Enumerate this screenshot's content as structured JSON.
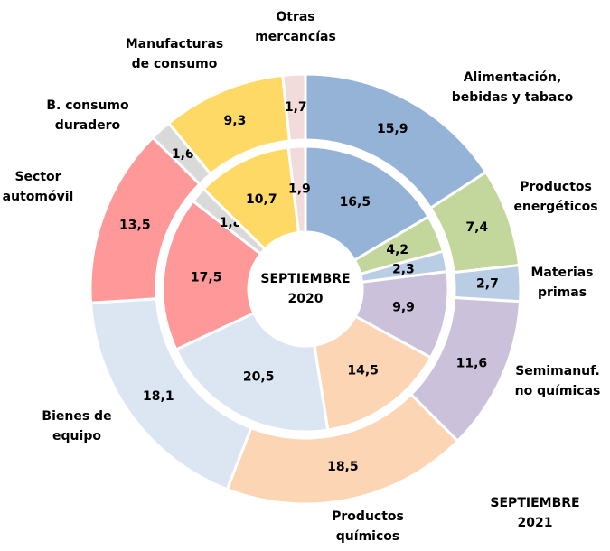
{
  "chart_data": {
    "type": "donut",
    "categories": [
      [
        "Alimentación,",
        "bebidas y tabaco"
      ],
      [
        "Productos",
        "energéticos"
      ],
      [
        "Materias",
        "primas"
      ],
      [
        "Semimanuf.",
        "no químicas"
      ],
      [
        "Productos",
        "químicos"
      ],
      [
        "Bienes de",
        "equipo"
      ],
      [
        "Sector",
        "automóvil"
      ],
      [
        "B. consumo",
        "duradero"
      ],
      [
        "Manufacturas",
        "de consumo"
      ],
      [
        "Otras",
        "mercancías"
      ]
    ],
    "colors": [
      "#95b3d7",
      "#c3d69b",
      "#b9cde5",
      "#ccc1da",
      "#fcd5b5",
      "#dce6f2",
      "#ff9999",
      "#d9d9d9",
      "#ffd966",
      "#f2dcdb"
    ],
    "series": [
      {
        "name": [
          "SEPTIEMBRE",
          "2021"
        ],
        "values": [
          15.9,
          7.4,
          2.7,
          11.6,
          18.5,
          18.1,
          13.5,
          1.6,
          9.3,
          1.7
        ],
        "value_labels": [
          "15,9",
          "7,4",
          "2,7",
          "11,6",
          "18,5",
          "18,1",
          "13,5",
          "1,6",
          "9,3",
          "1,7"
        ]
      },
      {
        "name": [
          "SEPTIEMBRE",
          "2020"
        ],
        "values": [
          16.5,
          4.2,
          2.3,
          9.9,
          14.5,
          20.5,
          17.5,
          1.8,
          10.7,
          1.9
        ],
        "value_labels": [
          "16,5",
          "4,2",
          "2,3",
          "9,9",
          "14,5",
          "20,5",
          "17,5",
          "1,8",
          "10,7",
          "1,9"
        ]
      }
    ]
  }
}
